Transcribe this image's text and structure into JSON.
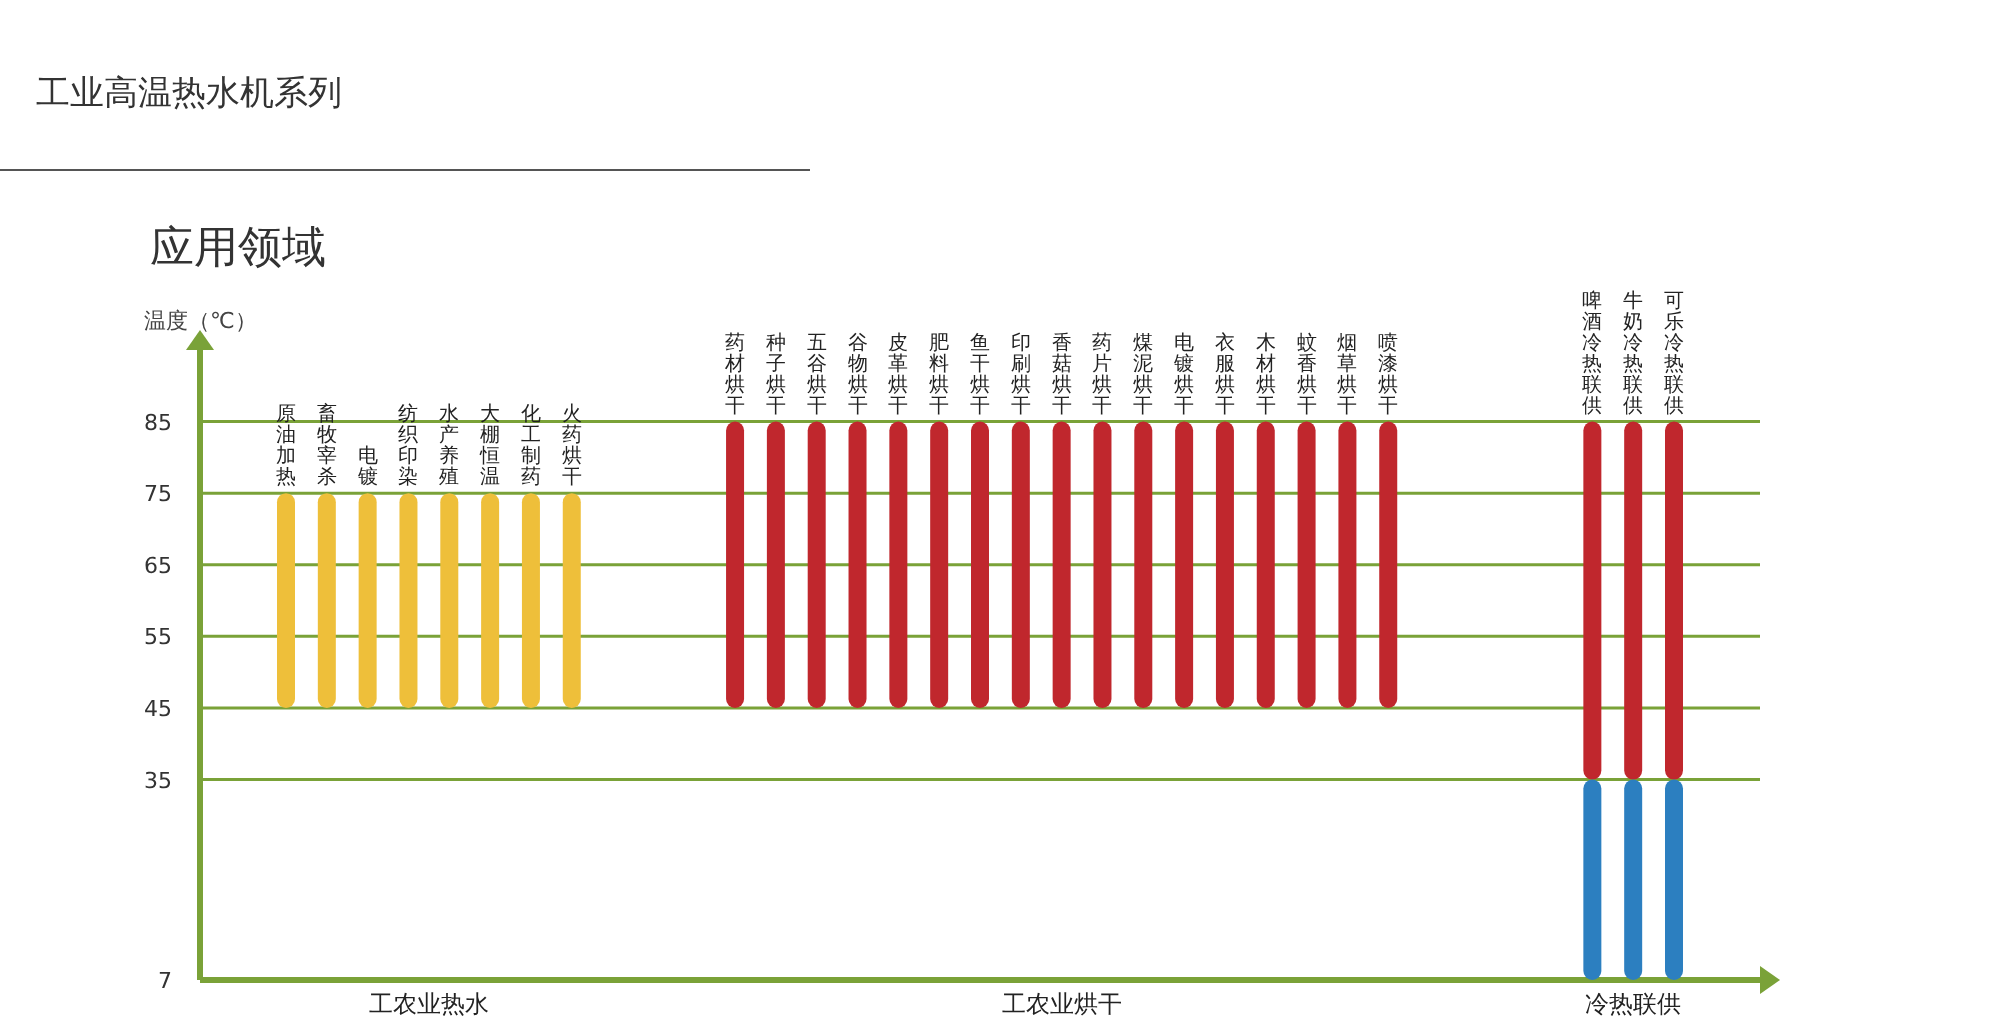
{
  "chart_data": {
    "type": "bar",
    "title": "工业高温热水机系列",
    "subtitle": "应用领域",
    "ylabel": "温度（℃）",
    "categories": [
      "原油加热",
      "畜牧宰杀",
      "电镀",
      "纺织印染",
      "水产养殖",
      "大棚恒温",
      "化工制药",
      "火药烘干",
      null,
      null,
      null,
      "药材烘干",
      "种子烘干",
      "五谷烘干",
      "谷物烘干",
      "皮革烘干",
      "肥料烘干",
      "鱼干烘干",
      "印刷烘干",
      "香菇烘干",
      "药片烘干",
      "煤泥烘干",
      "电镀烘干",
      "衣服烘干",
      "木材烘干",
      "蚊香烘干",
      "烟草烘干",
      "喷漆烘干",
      null,
      null,
      null,
      null,
      "啤酒冷热联供",
      "牛奶冷热联供",
      "可乐冷热联供"
    ],
    "series": [
      {
        "colors": [
          "#eebf3a",
          "#eebf3a",
          "#eebf3a",
          "#eebf3a",
          "#eebf3a",
          "#eebf3a",
          "#eebf3a",
          "#eebf3a",
          null,
          null,
          null,
          "#c0272d",
          "#c0272d",
          "#c0272d",
          "#c0272d",
          "#c0272d",
          "#c0272d",
          "#c0272d",
          "#c0272d",
          "#c0272d",
          "#c0272d",
          "#c0272d",
          "#c0272d",
          "#c0272d",
          "#c0272d",
          "#c0272d",
          "#c0272d",
          "#c0272d",
          null,
          null,
          null,
          null,
          "#c0272d",
          "#c0272d",
          "#c0272d"
        ],
        "base": [
          45,
          45,
          45,
          45,
          45,
          45,
          45,
          45,
          null,
          null,
          null,
          45,
          45,
          45,
          45,
          45,
          45,
          45,
          45,
          45,
          45,
          45,
          45,
          45,
          45,
          45,
          45,
          45,
          null,
          null,
          null,
          null,
          35,
          35,
          35
        ],
        "values": [
          30,
          30,
          30,
          30,
          30,
          30,
          30,
          30,
          null,
          null,
          null,
          40,
          40,
          40,
          40,
          40,
          40,
          40,
          40,
          40,
          40,
          40,
          40,
          40,
          40,
          40,
          40,
          40,
          null,
          null,
          null,
          null,
          50,
          50,
          50
        ]
      },
      {
        "color": "#2c7fc0",
        "base": [
          null,
          null,
          null,
          null,
          null,
          null,
          null,
          null,
          null,
          null,
          null,
          null,
          null,
          null,
          null,
          null,
          null,
          null,
          null,
          null,
          null,
          null,
          null,
          null,
          null,
          null,
          null,
          null,
          null,
          null,
          null,
          null,
          7,
          7,
          7
        ],
        "values": [
          null,
          null,
          null,
          null,
          null,
          null,
          null,
          null,
          null,
          null,
          null,
          null,
          null,
          null,
          null,
          null,
          null,
          null,
          null,
          null,
          null,
          null,
          null,
          null,
          null,
          null,
          null,
          null,
          null,
          null,
          null,
          null,
          28,
          28,
          28
        ]
      }
    ],
    "ylim": [
      7,
      95
    ],
    "yticks": [
      7,
      35,
      45,
      55,
      65,
      75,
      85
    ],
    "grid": "y",
    "annotations": [
      "工农业热水",
      "工农业烘干",
      "冷热联供"
    ]
  }
}
